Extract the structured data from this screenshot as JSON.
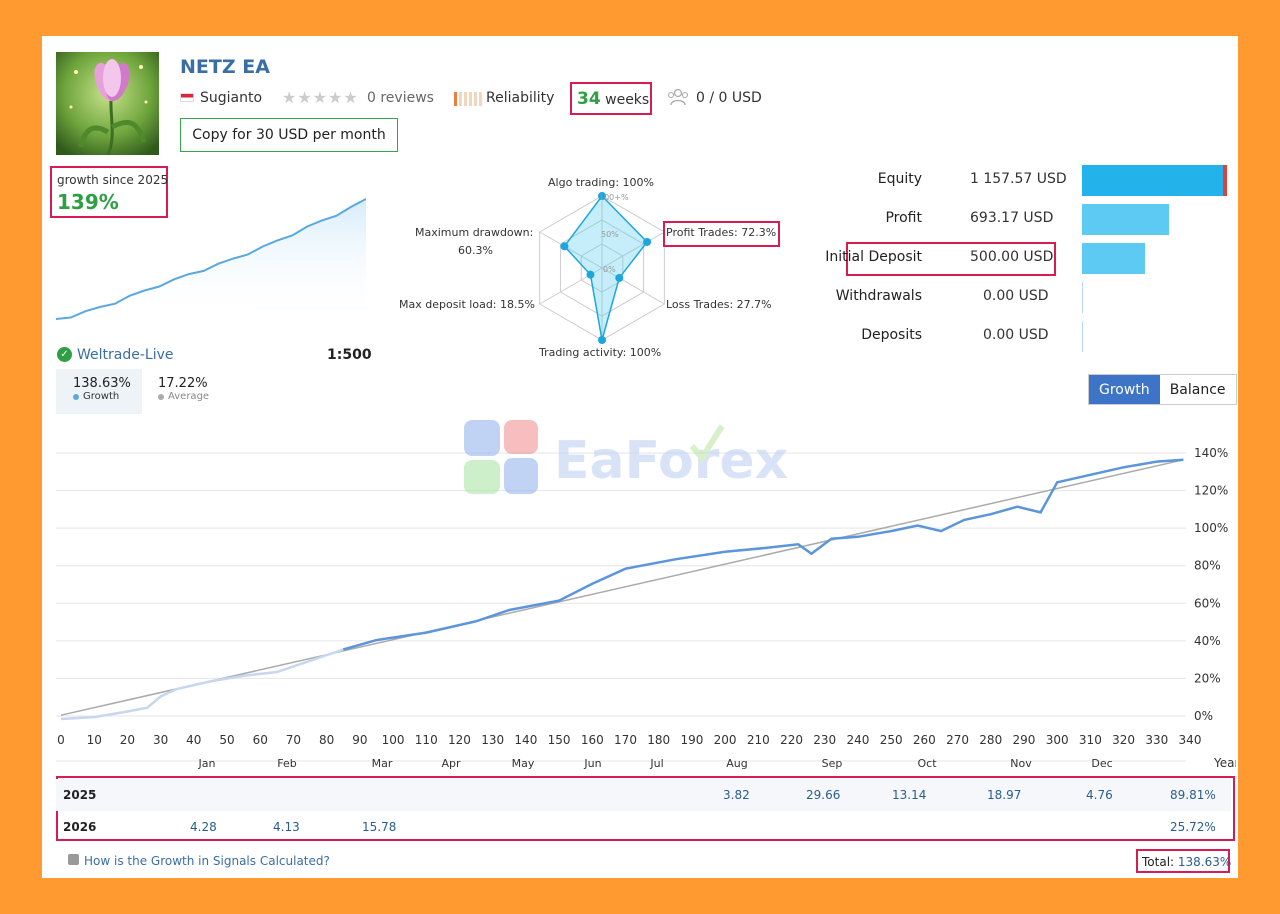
{
  "header": {
    "title": "NETZ EA",
    "author": "Sugianto",
    "reviews": "0 reviews",
    "reliability_label": "Reliability",
    "weeks_value": "34",
    "weeks_unit": "weeks",
    "subscribers": "0 / 0 USD",
    "copy_button": "Copy for 30 USD per month"
  },
  "growth_since": {
    "label": "growth since 2025",
    "value": "139%"
  },
  "account": {
    "broker": "Weltrade-Live",
    "leverage": "1:500",
    "growth_value": "138.63%",
    "growth_label": "Growth",
    "average_value": "17.22%",
    "average_label": "Average"
  },
  "radar": {
    "algo": "Algo trading: 100%",
    "profit": "Profit Trades: 72.3%",
    "loss": "Loss Trades: 27.7%",
    "activity": "Trading activity: 100%",
    "deposit_load": "Max deposit load: 18.5%",
    "drawdown_label": "Maximum drawdown:",
    "drawdown_value": "60.3%",
    "ring_100": "100+%",
    "ring_50": "50%",
    "ring_0": "0%",
    "values": {
      "algo": 1.0,
      "profit": 0.723,
      "loss": 0.277,
      "activity": 1.0,
      "deposit_load": 0.185,
      "drawdown": 0.603
    }
  },
  "metrics": [
    {
      "label": "Equity",
      "value": "1 157.57 USD",
      "amount": 1157.57
    },
    {
      "label": "Profit",
      "value": "693.17 USD",
      "amount": 693.17
    },
    {
      "label": "Initial Deposit",
      "value": "500.00 USD",
      "amount": 500.0
    },
    {
      "label": "Withdrawals",
      "value": "0.00 USD",
      "amount": 0
    },
    {
      "label": "Deposits",
      "value": "0.00 USD",
      "amount": 0
    }
  ],
  "toggle": {
    "growth": "Growth",
    "balance": "Balance"
  },
  "watermark": "EaForex",
  "chart_data": {
    "type": "line",
    "x_ticks": [
      0,
      10,
      20,
      30,
      40,
      50,
      60,
      70,
      80,
      90,
      100,
      110,
      120,
      130,
      140,
      150,
      160,
      170,
      180,
      190,
      200,
      210,
      220,
      230,
      240,
      250,
      260,
      270,
      280,
      290,
      300,
      310,
      320,
      330,
      340
    ],
    "y_ticks": [
      "0%",
      "20%",
      "40%",
      "60%",
      "80%",
      "100%",
      "120%",
      "140%"
    ],
    "xlim": [
      0,
      340
    ],
    "ylim": [
      -10,
      150
    ],
    "months": [
      "Jan",
      "Feb",
      "Mar",
      "Apr",
      "May",
      "Jun",
      "Jul",
      "Aug",
      "Sep",
      "Oct",
      "Nov",
      "Dec"
    ],
    "series": [
      {
        "values": [
          [
            0,
            0
          ],
          [
            10,
            1
          ],
          [
            20,
            4
          ],
          [
            26,
            6
          ],
          [
            30,
            12
          ],
          [
            35,
            16
          ],
          [
            45,
            20
          ],
          [
            55,
            23
          ],
          [
            65,
            25
          ],
          [
            75,
            31
          ],
          [
            85,
            37
          ],
          [
            95,
            42
          ],
          [
            110,
            46
          ],
          [
            125,
            52
          ],
          [
            135,
            58
          ],
          [
            150,
            63
          ],
          [
            160,
            72
          ],
          [
            170,
            80
          ],
          [
            185,
            85
          ],
          [
            200,
            89
          ],
          [
            212,
            91
          ],
          [
            222,
            93
          ],
          [
            226,
            88
          ],
          [
            232,
            96
          ],
          [
            240,
            97
          ],
          [
            250,
            100
          ],
          [
            258,
            103
          ],
          [
            265,
            100
          ],
          [
            272,
            106
          ],
          [
            280,
            109
          ],
          [
            288,
            113
          ],
          [
            295,
            110
          ],
          [
            300,
            126
          ],
          [
            310,
            130
          ],
          [
            320,
            134
          ],
          [
            330,
            137
          ],
          [
            338,
            138
          ]
        ]
      },
      {
        "values": [
          [
            0,
            2
          ],
          [
            338,
            138
          ]
        ]
      }
    ]
  },
  "mini_chart": {
    "values": [
      0,
      4,
      9,
      14,
      20,
      27,
      33,
      40,
      46,
      52,
      58,
      64,
      70,
      77,
      84,
      91,
      99,
      107,
      114,
      122,
      130,
      139
    ]
  },
  "ytd": {
    "year_header": "Year",
    "rows": [
      {
        "year": "2025",
        "aug": "3.82",
        "sep": "29.66",
        "oct": "13.14",
        "nov": "18.97",
        "dec": "4.76",
        "total": "89.81%"
      },
      {
        "year": "2026",
        "jan": "4.28",
        "feb": "4.13",
        "mar": "15.78",
        "total": "25.72%"
      }
    ],
    "help_link": "How is the Growth in Signals Calculated?",
    "total_label": "Total:",
    "total_value": "138.63%"
  }
}
